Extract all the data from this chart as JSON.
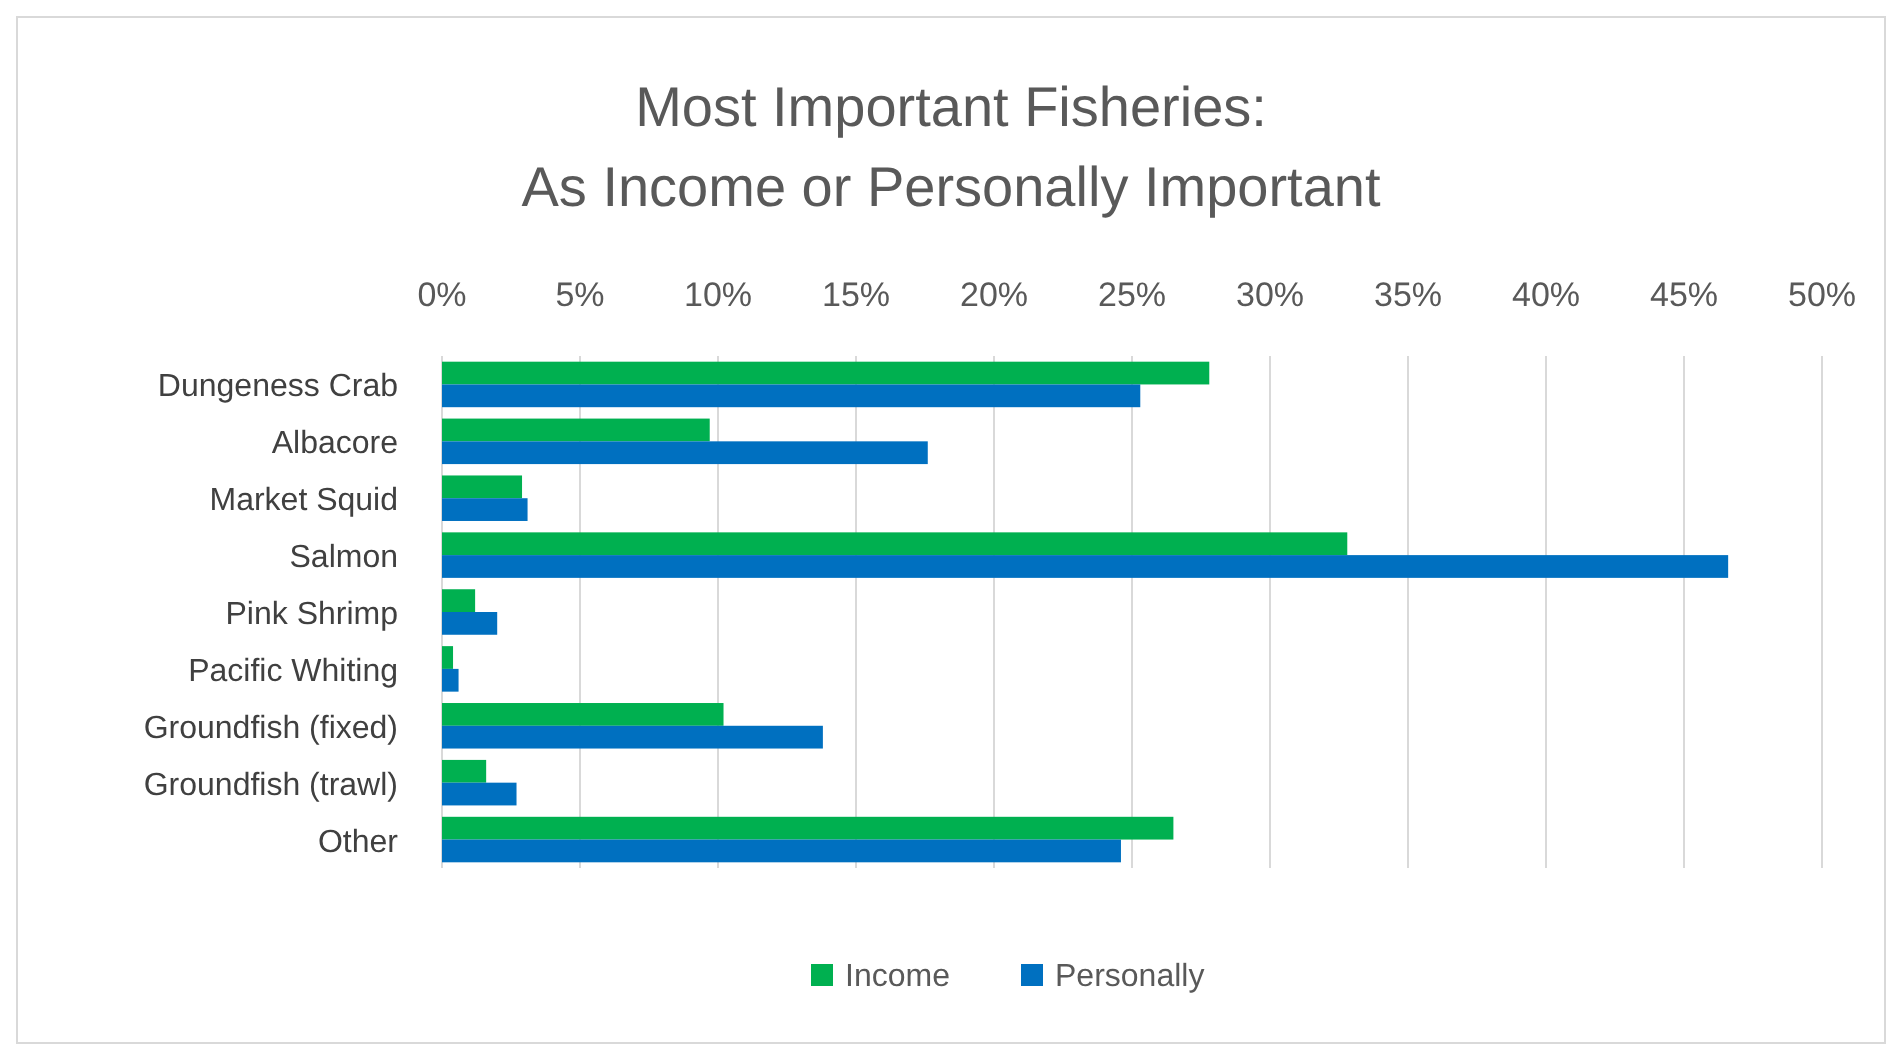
{
  "chart_data": {
    "type": "bar",
    "orientation": "horizontal",
    "title": "Most Important Fisheries:\nAs Income or Personally Important",
    "categories": [
      "Dungeness Crab",
      "Albacore",
      "Market Squid",
      "Salmon",
      "Pink Shrimp",
      "Pacific Whiting",
      "Groundfish (fixed)",
      "Groundfish (trawl)",
      "Other"
    ],
    "series": [
      {
        "name": "Income",
        "color": "#00b050",
        "values": [
          27.8,
          9.7,
          2.9,
          32.8,
          1.2,
          0.4,
          10.2,
          1.6,
          26.5
        ]
      },
      {
        "name": "Personally",
        "color": "#0070c0",
        "values": [
          25.3,
          17.6,
          3.1,
          46.6,
          2.0,
          0.6,
          13.8,
          2.7,
          24.6
        ]
      }
    ],
    "xlim": [
      0,
      50
    ],
    "xticks": [
      {
        "value": 0,
        "label": "0%"
      },
      {
        "value": 5,
        "label": "5%"
      },
      {
        "value": 10,
        "label": "10%"
      },
      {
        "value": 15,
        "label": "15%"
      },
      {
        "value": 20,
        "label": "20%"
      },
      {
        "value": 25,
        "label": "25%"
      },
      {
        "value": 30,
        "label": "30%"
      },
      {
        "value": 35,
        "label": "35%"
      },
      {
        "value": 40,
        "label": "40%"
      },
      {
        "value": 45,
        "label": "45%"
      },
      {
        "value": 50,
        "label": "50%"
      }
    ],
    "grid": "x",
    "legend": "bottom"
  }
}
